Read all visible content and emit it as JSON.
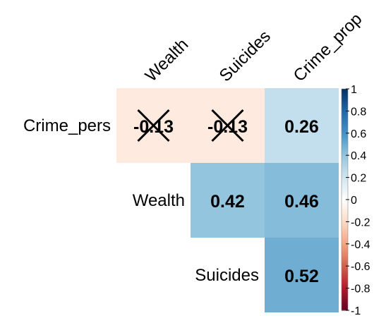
{
  "chart_data": {
    "type": "heatmap",
    "layout": "upper-triangle correlation matrix",
    "column_labels": [
      "Wealth",
      "Suicides",
      "Crime_prop"
    ],
    "row_labels": [
      "Crime_pers",
      "Wealth",
      "Suicides"
    ],
    "cells": [
      {
        "row": "Crime_pers",
        "col": "Wealth",
        "value": -0.13,
        "significant": false
      },
      {
        "row": "Crime_pers",
        "col": "Suicides",
        "value": -0.13,
        "significant": false
      },
      {
        "row": "Crime_pers",
        "col": "Crime_prop",
        "value": 0.26,
        "significant": true
      },
      {
        "row": "Wealth",
        "col": "Suicides",
        "value": 0.42,
        "significant": true
      },
      {
        "row": "Wealth",
        "col": "Crime_prop",
        "value": 0.46,
        "significant": true
      },
      {
        "row": "Suicides",
        "col": "Crime_prop",
        "value": 0.52,
        "significant": true
      }
    ],
    "colorbar": {
      "range": [
        -1,
        1
      ],
      "ticks": [
        1,
        0.8,
        0.6,
        0.4,
        0.2,
        0,
        -0.2,
        -0.4,
        -0.6,
        -0.8,
        -1
      ],
      "tick_labels": [
        "1",
        "0.8",
        "0.6",
        "0.4",
        "0.2",
        "0",
        "-0.2",
        "-0.4",
        "-0.6",
        "-0.8",
        "-1"
      ],
      "low_color": "#67001F",
      "mid_color": "#FFFFFF",
      "high_color": "#053061"
    },
    "insignificant_marker": "cross"
  }
}
